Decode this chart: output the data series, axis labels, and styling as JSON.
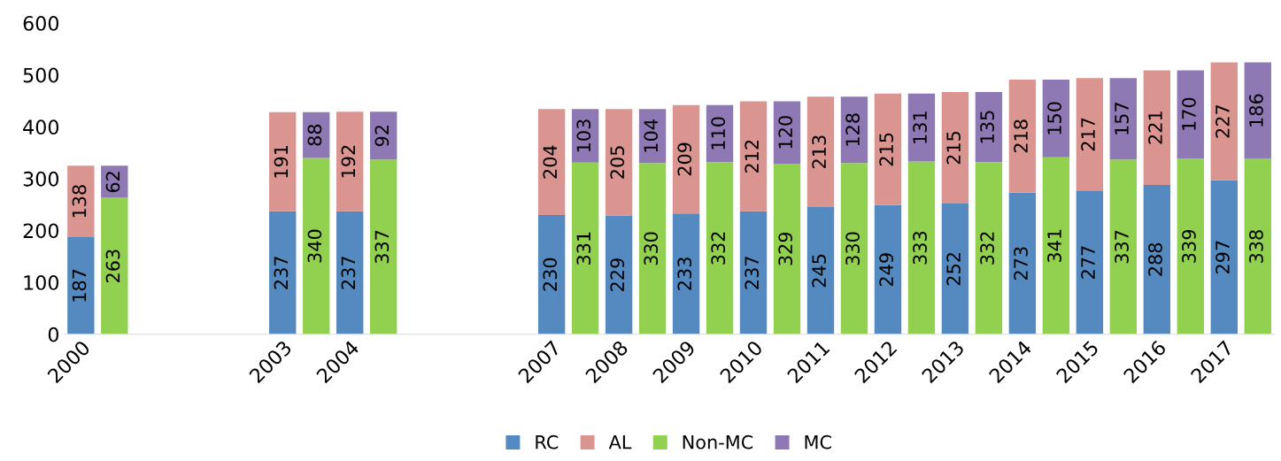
{
  "chart_data": {
    "type": "bar",
    "stacked": true,
    "data_labels": true,
    "legend": "bottom",
    "grid": false,
    "categories": [
      "2000",
      null,
      null,
      null,
      null,
      null,
      "2003",
      null,
      "2004",
      null,
      null,
      null,
      null,
      null,
      "2007",
      null,
      "2008",
      null,
      "2009",
      null,
      "2010",
      null,
      "2011",
      null,
      "2012",
      null,
      "2013",
      null,
      "2014",
      null,
      "2015",
      null,
      "2016",
      null,
      "2017",
      null
    ],
    "ylim": [
      0,
      600
    ],
    "yticks": [
      0,
      100,
      200,
      300,
      400,
      500,
      600
    ],
    "series": [
      {
        "name": "RC",
        "color": "#558ac0",
        "values": [
          187,
          null,
          null,
          null,
          null,
          null,
          237,
          null,
          237,
          null,
          null,
          null,
          null,
          null,
          230,
          null,
          229,
          null,
          233,
          null,
          237,
          null,
          245,
          null,
          249,
          null,
          252,
          null,
          273,
          null,
          277,
          null,
          288,
          null,
          297,
          null
        ]
      },
      {
        "name": "AL",
        "color": "#db9590",
        "values": [
          138,
          null,
          null,
          null,
          null,
          null,
          191,
          null,
          192,
          null,
          null,
          null,
          null,
          null,
          204,
          null,
          205,
          null,
          209,
          null,
          212,
          null,
          213,
          null,
          215,
          null,
          215,
          null,
          218,
          null,
          217,
          null,
          221,
          null,
          227,
          null
        ]
      },
      {
        "name": "Non-MC",
        "color": "#92d050",
        "values": [
          null,
          263,
          null,
          null,
          null,
          null,
          null,
          340,
          null,
          337,
          null,
          null,
          null,
          null,
          null,
          331,
          null,
          330,
          null,
          332,
          null,
          329,
          null,
          330,
          null,
          333,
          null,
          332,
          null,
          341,
          null,
          337,
          null,
          339,
          null,
          338
        ]
      },
      {
        "name": "MC",
        "color": "#8e79b4",
        "values": [
          null,
          62,
          null,
          null,
          null,
          null,
          null,
          88,
          null,
          92,
          null,
          null,
          null,
          null,
          null,
          103,
          null,
          104,
          null,
          110,
          null,
          120,
          null,
          128,
          null,
          131,
          null,
          135,
          null,
          150,
          null,
          157,
          null,
          170,
          null,
          186
        ]
      }
    ]
  }
}
